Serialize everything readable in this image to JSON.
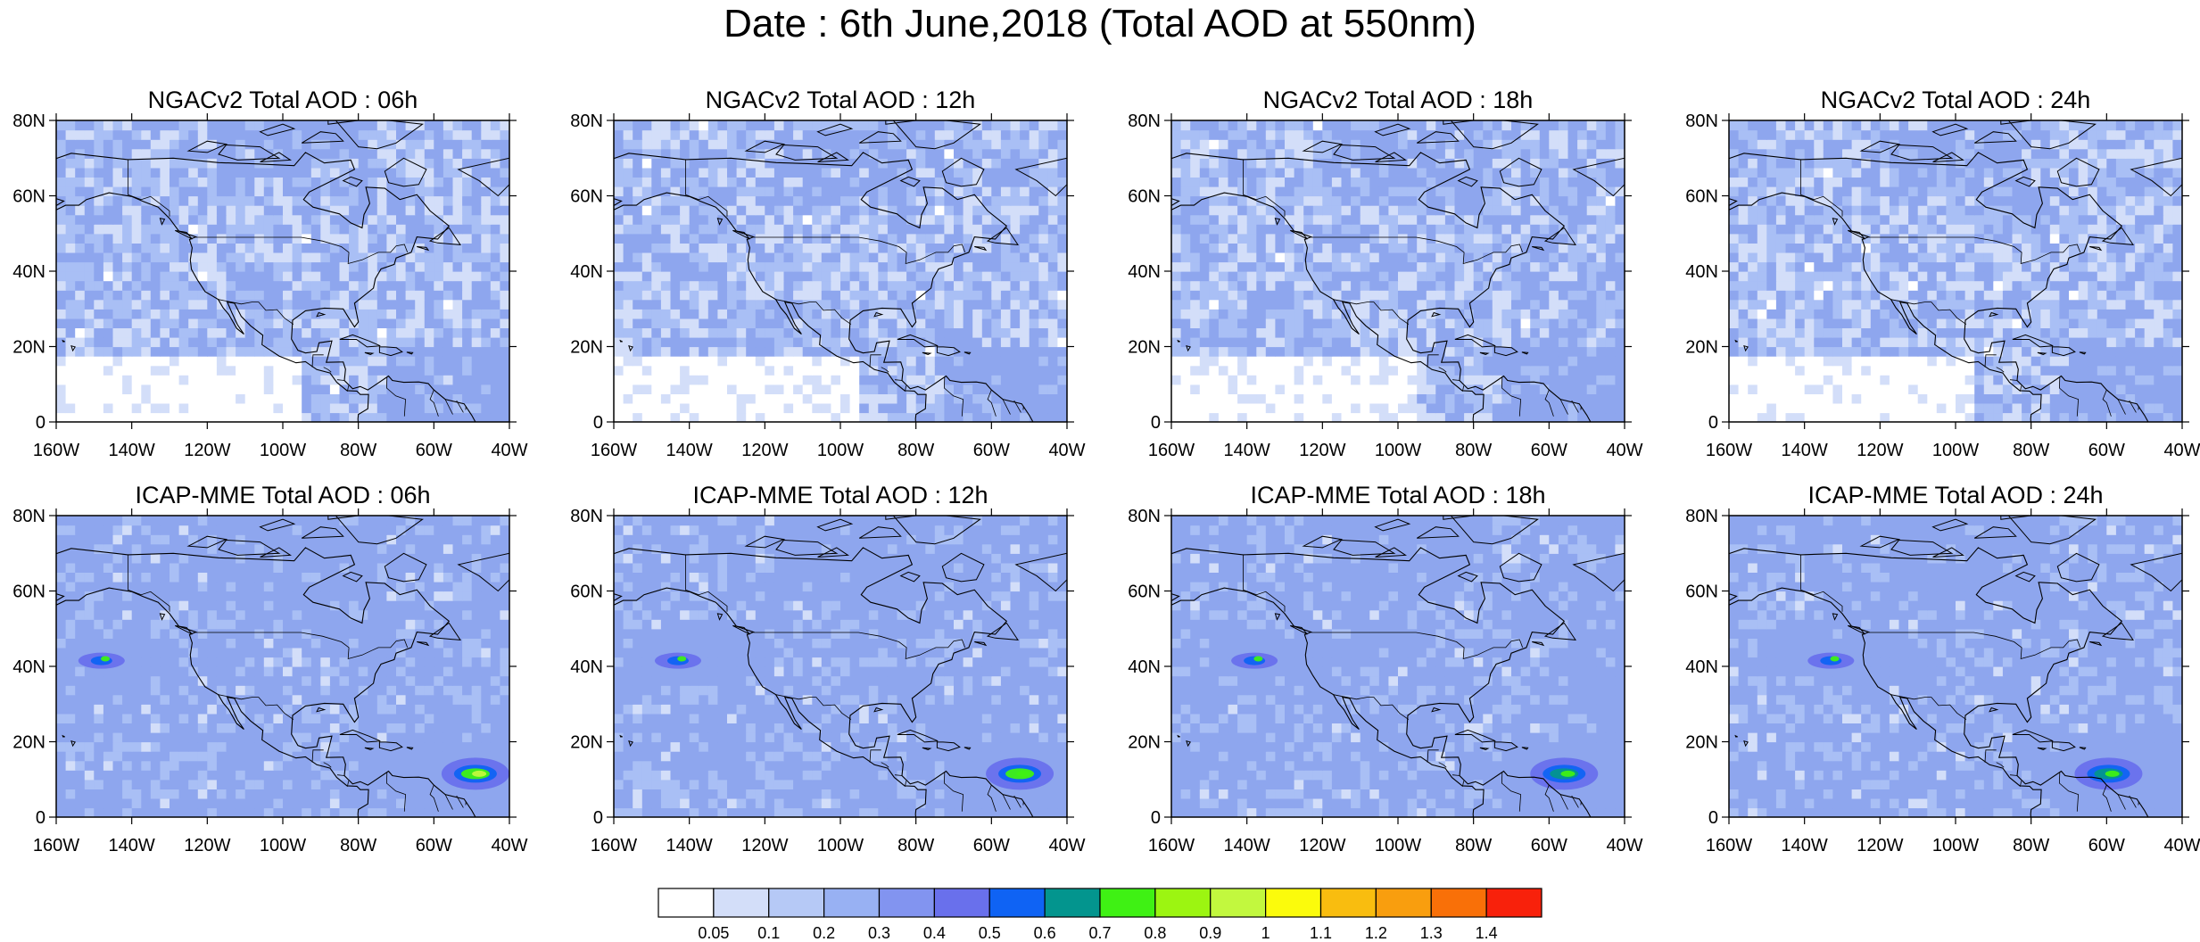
{
  "title": "Date : 6th June,2018 (Total AOD at 550nm)",
  "colors": {
    "ocean_base": "#cbd9fa",
    "land_base": "#d3def9",
    "low": "#ffffff",
    "mid": "#a9bff5",
    "high": "#8ea6ee",
    "coast": "#000000"
  },
  "panels": [
    {
      "title": "NGACv2 Total AOD : 06h",
      "model": "NGACv2",
      "hour": "06h"
    },
    {
      "title": "NGACv2 Total AOD : 12h",
      "model": "NGACv2",
      "hour": "12h"
    },
    {
      "title": "NGACv2 Total AOD : 18h",
      "model": "NGACv2",
      "hour": "18h"
    },
    {
      "title": "NGACv2 Total AOD : 24h",
      "model": "NGACv2",
      "hour": "24h"
    },
    {
      "title": "ICAP-MME Total AOD : 06h",
      "model": "ICAP-MME",
      "hour": "06h"
    },
    {
      "title": "ICAP-MME Total AOD : 12h",
      "model": "ICAP-MME",
      "hour": "12h"
    },
    {
      "title": "ICAP-MME Total AOD : 18h",
      "model": "ICAP-MME",
      "hour": "18h"
    },
    {
      "title": "ICAP-MME Total AOD : 24h",
      "model": "ICAP-MME",
      "hour": "24h"
    }
  ],
  "lat_labels": [
    "80N",
    "60N",
    "40N",
    "20N",
    "0"
  ],
  "lat_values": [
    80,
    60,
    40,
    20,
    0
  ],
  "lon_labels": [
    "160W",
    "140W",
    "120W",
    "100W",
    "80W",
    "60W",
    "40W"
  ],
  "lon_values": [
    -160,
    -140,
    -120,
    -100,
    -80,
    -60,
    -40
  ],
  "colorbar": {
    "labels": [
      "0.05",
      "0.1",
      "0.2",
      "0.3",
      "0.4",
      "0.5",
      "0.6",
      "0.7",
      "0.8",
      "0.9",
      "1",
      "1.1",
      "1.2",
      "1.3",
      "1.4"
    ],
    "colors": [
      "#ffffff",
      "#d3def9",
      "#b6c9f6",
      "#98b1f3",
      "#8294f0",
      "#6970ec",
      "#0f63f4",
      "#03958e",
      "#3ff114",
      "#9cf511",
      "#c2f83e",
      "#fbfb0c",
      "#f9bd0f",
      "#f99e0e",
      "#f97008",
      "#f8210b"
    ]
  }
}
